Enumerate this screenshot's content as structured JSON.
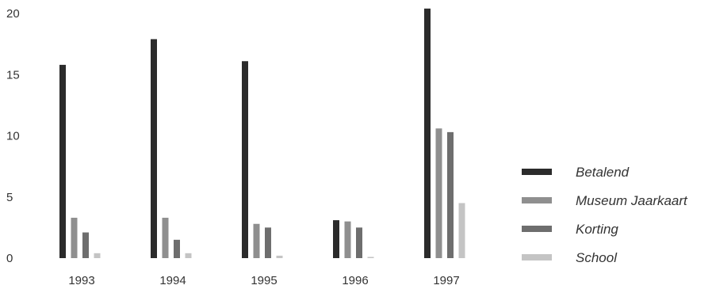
{
  "chart_data": {
    "type": "bar",
    "categories": [
      "1993",
      "1994",
      "1995",
      "1996",
      "1997"
    ],
    "series": [
      {
        "name": "Betalend",
        "color": "#2b2b2b",
        "values": [
          15.8,
          17.9,
          16.1,
          3.1,
          20.4
        ]
      },
      {
        "name": "Museum Jaarkaart",
        "color": "#8f8f8f",
        "values": [
          3.3,
          3.3,
          2.8,
          3.0,
          10.6
        ]
      },
      {
        "name": "Korting",
        "color": "#6e6e6e",
        "values": [
          2.1,
          1.5,
          2.5,
          2.5,
          10.3
        ]
      },
      {
        "name": "School",
        "color": "#c4c4c4",
        "values": [
          0.4,
          0.4,
          0.2,
          0.1,
          4.5
        ]
      }
    ],
    "y_ticks": [
      "0",
      "5",
      "10",
      "15",
      "20"
    ],
    "ylim": [
      0,
      20
    ],
    "legend_position": "right",
    "grid": false
  }
}
